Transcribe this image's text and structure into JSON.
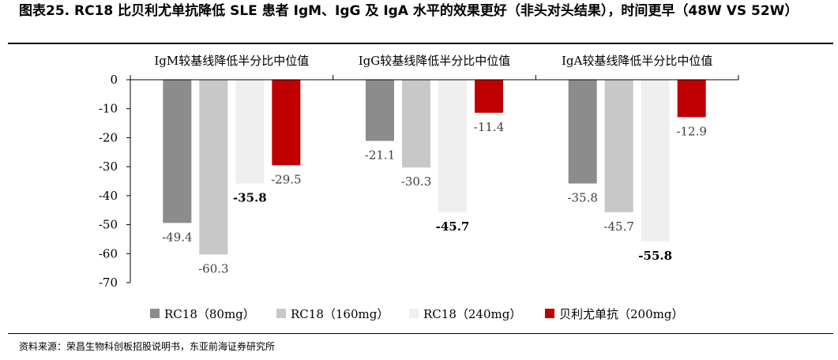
{
  "figure": {
    "title": "图表25. RC18 比贝利尤单抗降低 SLE 患者 IgM、IgG 及 IgA 水平的效果更好（非头对头结果），时间更早（48W VS 52W）",
    "source": "资料来源：荣昌生物科创板招股说明书，东亚前海证券研究所"
  },
  "chart_data": {
    "type": "bar",
    "groups": [
      "IgM较基线降低半分比中位值",
      "IgG较基线降低半分比中位值",
      "IgA较基线降低半分比中位值"
    ],
    "series": [
      {
        "name": "RC18（80mg）",
        "color": "#8c8c8c",
        "values": [
          -49.4,
          -21.1,
          -35.8
        ],
        "labels": [
          "-49.4",
          "-21.1",
          "-35.8"
        ],
        "bold": [
          false,
          false,
          false
        ]
      },
      {
        "name": "RC18（160mg）",
        "color": "#c8c8c8",
        "values": [
          -60.3,
          -30.3,
          -45.7
        ],
        "labels": [
          "-60.3",
          "-30.3",
          "-45.7"
        ],
        "bold": [
          false,
          false,
          false
        ]
      },
      {
        "name": "RC18（240mg）",
        "color": "#efefef",
        "values": [
          -35.8,
          -45.7,
          -55.8
        ],
        "labels": [
          "-35.8",
          "-45.7",
          "-55.8"
        ],
        "bold": [
          true,
          true,
          true
        ]
      },
      {
        "name": "贝利尤单抗（200mg）",
        "color": "#c00000",
        "values": [
          -29.5,
          -11.4,
          -12.9
        ],
        "labels": [
          "-29.5",
          "-11.4",
          "-12.9"
        ],
        "bold": [
          false,
          false,
          false
        ]
      }
    ],
    "yticks": [
      "0",
      "-10",
      "-20",
      "-30",
      "-40",
      "-50",
      "-60",
      "-70"
    ],
    "ylim": [
      -70,
      0
    ],
    "legend_position": "bottom"
  }
}
